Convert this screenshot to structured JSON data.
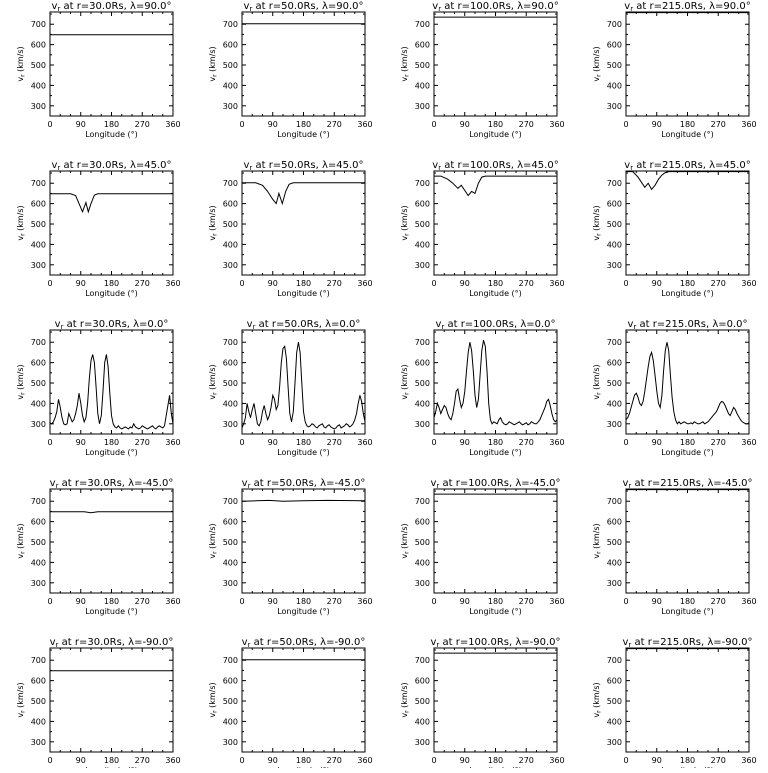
{
  "chart_data": [
    {
      "type": "line",
      "title": "v_r at r=30.0Rs, λ=90.0°",
      "xlabel": "Longitude (°)",
      "ylabel": "v_r (km/s)",
      "xlim": [
        0,
        360
      ],
      "ylim": [
        250,
        760
      ],
      "x": [
        0,
        360
      ],
      "y": [
        648,
        648
      ]
    },
    {
      "type": "line",
      "title": "v_r at r=50.0Rs, λ=90.0°",
      "xlabel": "Longitude (°)",
      "ylabel": "v_r (km/s)",
      "xlim": [
        0,
        360
      ],
      "ylim": [
        250,
        760
      ],
      "x": [
        0,
        360
      ],
      "y": [
        702,
        702
      ]
    },
    {
      "type": "line",
      "title": "v_r at r=100.0Rs, λ=90.0°",
      "xlabel": "Longitude (°)",
      "ylabel": "v_r (km/s)",
      "xlim": [
        0,
        360
      ],
      "ylim": [
        250,
        760
      ],
      "x": [
        0,
        360
      ],
      "y": [
        735,
        735
      ]
    },
    {
      "type": "line",
      "title": "v_r at r=215.0Rs, λ=90.0°",
      "xlabel": "Longitude (°)",
      "ylabel": "v_r (km/s)",
      "xlim": [
        0,
        360
      ],
      "ylim": [
        250,
        760
      ],
      "x": [
        0,
        360
      ],
      "y": [
        757,
        757
      ]
    },
    {
      "type": "line",
      "title": "v_r at r=30.0Rs, λ=45.0°",
      "xlabel": "Longitude (°)",
      "ylabel": "v_r (km/s)",
      "xlim": [
        0,
        360
      ],
      "ylim": [
        250,
        760
      ],
      "x": [
        0,
        60,
        75,
        85,
        95,
        105,
        112,
        120,
        130,
        140,
        360
      ],
      "y": [
        648,
        648,
        640,
        600,
        560,
        605,
        560,
        600,
        642,
        648,
        648
      ]
    },
    {
      "type": "line",
      "title": "v_r at r=50.0Rs, λ=45.0°",
      "xlabel": "Longitude (°)",
      "ylabel": "v_r (km/s)",
      "xlim": [
        0,
        360
      ],
      "ylim": [
        250,
        760
      ],
      "x": [
        0,
        40,
        60,
        75,
        90,
        100,
        108,
        118,
        128,
        138,
        150,
        360
      ],
      "y": [
        702,
        702,
        690,
        660,
        620,
        600,
        650,
        600,
        660,
        695,
        702,
        702
      ]
    },
    {
      "type": "line",
      "title": "v_r at r=100.0Rs, λ=45.0°",
      "xlabel": "Longitude (°)",
      "ylabel": "v_r (km/s)",
      "xlim": [
        0,
        360
      ],
      "ylim": [
        250,
        760
      ],
      "x": [
        0,
        20,
        40,
        55,
        70,
        80,
        92,
        100,
        110,
        120,
        130,
        140,
        150,
        360
      ],
      "y": [
        735,
        735,
        720,
        700,
        675,
        690,
        660,
        640,
        660,
        650,
        700,
        730,
        735,
        735
      ]
    },
    {
      "type": "line",
      "title": "v_r at r=215.0Rs, λ=45.0°",
      "xlabel": "Longitude (°)",
      "ylabel": "v_r (km/s)",
      "xlim": [
        0,
        360
      ],
      "ylim": [
        250,
        760
      ],
      "x": [
        0,
        20,
        35,
        45,
        55,
        65,
        75,
        85,
        95,
        105,
        115,
        125,
        360
      ],
      "y": [
        757,
        757,
        730,
        705,
        680,
        700,
        670,
        690,
        720,
        740,
        752,
        757,
        757
      ]
    },
    {
      "type": "line",
      "title": "v_r at r=30.0Rs, λ=0.0°",
      "xlabel": "Longitude (°)",
      "ylabel": "v_r (km/s)",
      "xlim": [
        0,
        360
      ],
      "ylim": [
        250,
        760
      ],
      "x": [
        0,
        5,
        10,
        15,
        20,
        25,
        30,
        35,
        40,
        45,
        50,
        55,
        60,
        65,
        70,
        75,
        80,
        85,
        90,
        95,
        100,
        105,
        110,
        115,
        120,
        125,
        130,
        135,
        140,
        145,
        150,
        155,
        160,
        165,
        170,
        175,
        180,
        185,
        190,
        195,
        200,
        205,
        210,
        215,
        220,
        225,
        230,
        235,
        240,
        245,
        250,
        255,
        260,
        265,
        270,
        275,
        280,
        285,
        290,
        295,
        300,
        305,
        310,
        315,
        320,
        325,
        330,
        335,
        340,
        345,
        350,
        355,
        360
      ],
      "y": [
        305,
        300,
        310,
        330,
        360,
        420,
        380,
        330,
        300,
        295,
        300,
        350,
        330,
        310,
        320,
        350,
        390,
        450,
        400,
        340,
        310,
        330,
        400,
        520,
        610,
        640,
        600,
        480,
        350,
        300,
        340,
        460,
        600,
        640,
        580,
        450,
        340,
        300,
        285,
        280,
        290,
        280,
        275,
        280,
        285,
        280,
        275,
        285,
        280,
        300,
        285,
        280,
        275,
        280,
        290,
        285,
        280,
        275,
        280,
        285,
        290,
        280,
        275,
        285,
        290,
        285,
        280,
        290,
        340,
        390,
        440,
        350,
        300
      ]
    },
    {
      "type": "line",
      "title": "v_r at r=50.0Rs, λ=0.0°",
      "xlabel": "Longitude (°)",
      "ylabel": "v_r (km/s)",
      "xlim": [
        0,
        360
      ],
      "ylim": [
        250,
        760
      ],
      "x": [
        0,
        5,
        10,
        15,
        20,
        25,
        30,
        35,
        40,
        45,
        50,
        55,
        60,
        65,
        70,
        75,
        80,
        85,
        90,
        95,
        100,
        105,
        110,
        115,
        120,
        125,
        130,
        135,
        140,
        145,
        150,
        155,
        160,
        165,
        170,
        175,
        180,
        185,
        190,
        195,
        200,
        205,
        210,
        215,
        220,
        225,
        230,
        235,
        240,
        245,
        250,
        255,
        260,
        265,
        270,
        275,
        280,
        285,
        290,
        295,
        300,
        305,
        310,
        315,
        320,
        325,
        330,
        335,
        340,
        345,
        350,
        355,
        360
      ],
      "y": [
        280,
        300,
        330,
        400,
        360,
        330,
        370,
        400,
        350,
        300,
        290,
        310,
        360,
        390,
        350,
        320,
        340,
        380,
        440,
        420,
        370,
        390,
        480,
        600,
        670,
        680,
        620,
        480,
        350,
        310,
        360,
        500,
        650,
        700,
        650,
        500,
        360,
        310,
        290,
        285,
        290,
        300,
        295,
        285,
        280,
        290,
        295,
        300,
        285,
        280,
        290,
        295,
        285,
        280,
        275,
        280,
        290,
        295,
        280,
        285,
        290,
        300,
        295,
        285,
        290,
        300,
        320,
        350,
        400,
        440,
        410,
        350,
        310
      ]
    },
    {
      "type": "line",
      "title": "v_r at r=100.0Rs, λ=0.0°",
      "xlabel": "Longitude (°)",
      "ylabel": "v_r (km/s)",
      "xlim": [
        0,
        360
      ],
      "ylim": [
        250,
        760
      ],
      "x": [
        0,
        5,
        10,
        15,
        20,
        25,
        30,
        35,
        40,
        45,
        50,
        55,
        60,
        65,
        70,
        75,
        80,
        85,
        90,
        95,
        100,
        105,
        110,
        115,
        120,
        125,
        130,
        135,
        140,
        145,
        150,
        155,
        160,
        165,
        170,
        175,
        180,
        185,
        190,
        195,
        200,
        205,
        210,
        215,
        220,
        225,
        230,
        235,
        240,
        245,
        250,
        255,
        260,
        265,
        270,
        275,
        280,
        285,
        290,
        295,
        300,
        305,
        310,
        315,
        320,
        325,
        330,
        335,
        340,
        345,
        350,
        355,
        360
      ],
      "y": [
        330,
        360,
        400,
        380,
        350,
        370,
        390,
        380,
        350,
        330,
        320,
        350,
        400,
        460,
        470,
        420,
        380,
        400,
        460,
        560,
        650,
        700,
        660,
        560,
        440,
        380,
        420,
        540,
        660,
        710,
        680,
        560,
        400,
        320,
        300,
        310,
        305,
        300,
        320,
        330,
        310,
        300,
        295,
        300,
        310,
        305,
        300,
        295,
        300,
        305,
        310,
        300,
        295,
        300,
        305,
        295,
        300,
        310,
        305,
        300,
        300,
        310,
        320,
        340,
        360,
        380,
        410,
        420,
        390,
        350,
        320,
        310,
        320
      ]
    },
    {
      "type": "line",
      "title": "v_r at r=215.0Rs, λ=0.0°",
      "xlabel": "Longitude (°)",
      "ylabel": "v_r (km/s)",
      "xlim": [
        0,
        360
      ],
      "ylim": [
        250,
        760
      ],
      "x": [
        0,
        5,
        10,
        15,
        20,
        25,
        30,
        35,
        40,
        45,
        50,
        55,
        60,
        65,
        70,
        75,
        80,
        85,
        90,
        95,
        100,
        105,
        110,
        115,
        120,
        125,
        130,
        135,
        140,
        145,
        150,
        155,
        160,
        165,
        170,
        175,
        180,
        185,
        190,
        195,
        200,
        205,
        210,
        215,
        220,
        225,
        230,
        235,
        240,
        245,
        250,
        255,
        260,
        265,
        270,
        275,
        280,
        285,
        290,
        295,
        300,
        305,
        310,
        315,
        320,
        325,
        330,
        335,
        340,
        345,
        350,
        355,
        360
      ],
      "y": [
        320,
        330,
        350,
        380,
        410,
        440,
        450,
        430,
        400,
        390,
        410,
        460,
        520,
        580,
        630,
        650,
        610,
        540,
        460,
        400,
        380,
        440,
        560,
        660,
        700,
        660,
        540,
        430,
        360,
        320,
        300,
        310,
        300,
        305,
        310,
        305,
        300,
        300,
        305,
        300,
        310,
        305,
        300,
        300,
        305,
        310,
        300,
        305,
        310,
        320,
        330,
        340,
        350,
        360,
        380,
        400,
        410,
        405,
        390,
        370,
        350,
        340,
        360,
        380,
        370,
        350,
        335,
        320,
        310,
        305,
        300,
        300,
        305
      ]
    },
    {
      "type": "line",
      "title": "v_r at r=30.0Rs, λ=-45.0°",
      "xlabel": "Longitude (°)",
      "ylabel": "v_r (km/s)",
      "xlim": [
        0,
        360
      ],
      "ylim": [
        250,
        760
      ],
      "x": [
        0,
        100,
        120,
        140,
        360
      ],
      "y": [
        648,
        648,
        644,
        648,
        648
      ]
    },
    {
      "type": "line",
      "title": "v_r at r=50.0Rs, λ=-45.0°",
      "xlabel": "Longitude (°)",
      "ylabel": "v_r (km/s)",
      "xlim": [
        0,
        360
      ],
      "ylim": [
        250,
        760
      ],
      "x": [
        0,
        40,
        80,
        120,
        180,
        250,
        360
      ],
      "y": [
        700,
        702,
        704,
        700,
        702,
        704,
        702
      ]
    },
    {
      "type": "line",
      "title": "v_r at r=100.0Rs, λ=-45.0°",
      "xlabel": "Longitude (°)",
      "ylabel": "v_r (km/s)",
      "xlim": [
        0,
        360
      ],
      "ylim": [
        250,
        760
      ],
      "x": [
        0,
        360
      ],
      "y": [
        735,
        735
      ]
    },
    {
      "type": "line",
      "title": "v_r at r=215.0Rs, λ=-45.0°",
      "xlabel": "Longitude (°)",
      "ylabel": "v_r (km/s)",
      "xlim": [
        0,
        360
      ],
      "ylim": [
        250,
        760
      ],
      "x": [
        0,
        360
      ],
      "y": [
        757,
        757
      ]
    },
    {
      "type": "line",
      "title": "v_r at r=30.0Rs, λ=-90.0°",
      "xlabel": "Longitude (°)",
      "ylabel": "v_r (km/s)",
      "xlim": [
        0,
        360
      ],
      "ylim": [
        250,
        760
      ],
      "x": [
        0,
        360
      ],
      "y": [
        648,
        648
      ]
    },
    {
      "type": "line",
      "title": "v_r at r=50.0Rs, λ=-90.0°",
      "xlabel": "Longitude (°)",
      "ylabel": "v_r (km/s)",
      "xlim": [
        0,
        360
      ],
      "ylim": [
        250,
        760
      ],
      "x": [
        0,
        360
      ],
      "y": [
        702,
        702
      ]
    },
    {
      "type": "line",
      "title": "v_r at r=100.0Rs, λ=-90.0°",
      "xlabel": "Longitude (°)",
      "ylabel": "v_r (km/s)",
      "xlim": [
        0,
        360
      ],
      "ylim": [
        250,
        760
      ],
      "x": [
        0,
        360
      ],
      "y": [
        735,
        735
      ]
    },
    {
      "type": "line",
      "title": "v_r at r=215.0Rs, λ=-90.0°",
      "xlabel": "Longitude (°)",
      "ylabel": "v_r (km/s)",
      "xlim": [
        0,
        360
      ],
      "ylim": [
        250,
        760
      ],
      "x": [
        0,
        360
      ],
      "y": [
        757,
        757
      ]
    }
  ],
  "axes": {
    "xticks": [
      "0",
      "90",
      "180",
      "270",
      "360"
    ],
    "yticks": [
      "300",
      "400",
      "500",
      "600",
      "700"
    ]
  },
  "rows": [
    {
      "lambda": "90.0"
    },
    {
      "lambda": "45.0"
    },
    {
      "lambda": "0.0"
    },
    {
      "lambda": "-45.0"
    },
    {
      "lambda": "-90.0"
    }
  ],
  "cols": [
    {
      "r": "30.0Rs"
    },
    {
      "r": "50.0Rs"
    },
    {
      "r": "100.0Rs"
    },
    {
      "r": "215.0Rs"
    }
  ],
  "labels": {
    "x_axis": "Longitude (°)",
    "y_axis": "v_r (km/s)"
  }
}
